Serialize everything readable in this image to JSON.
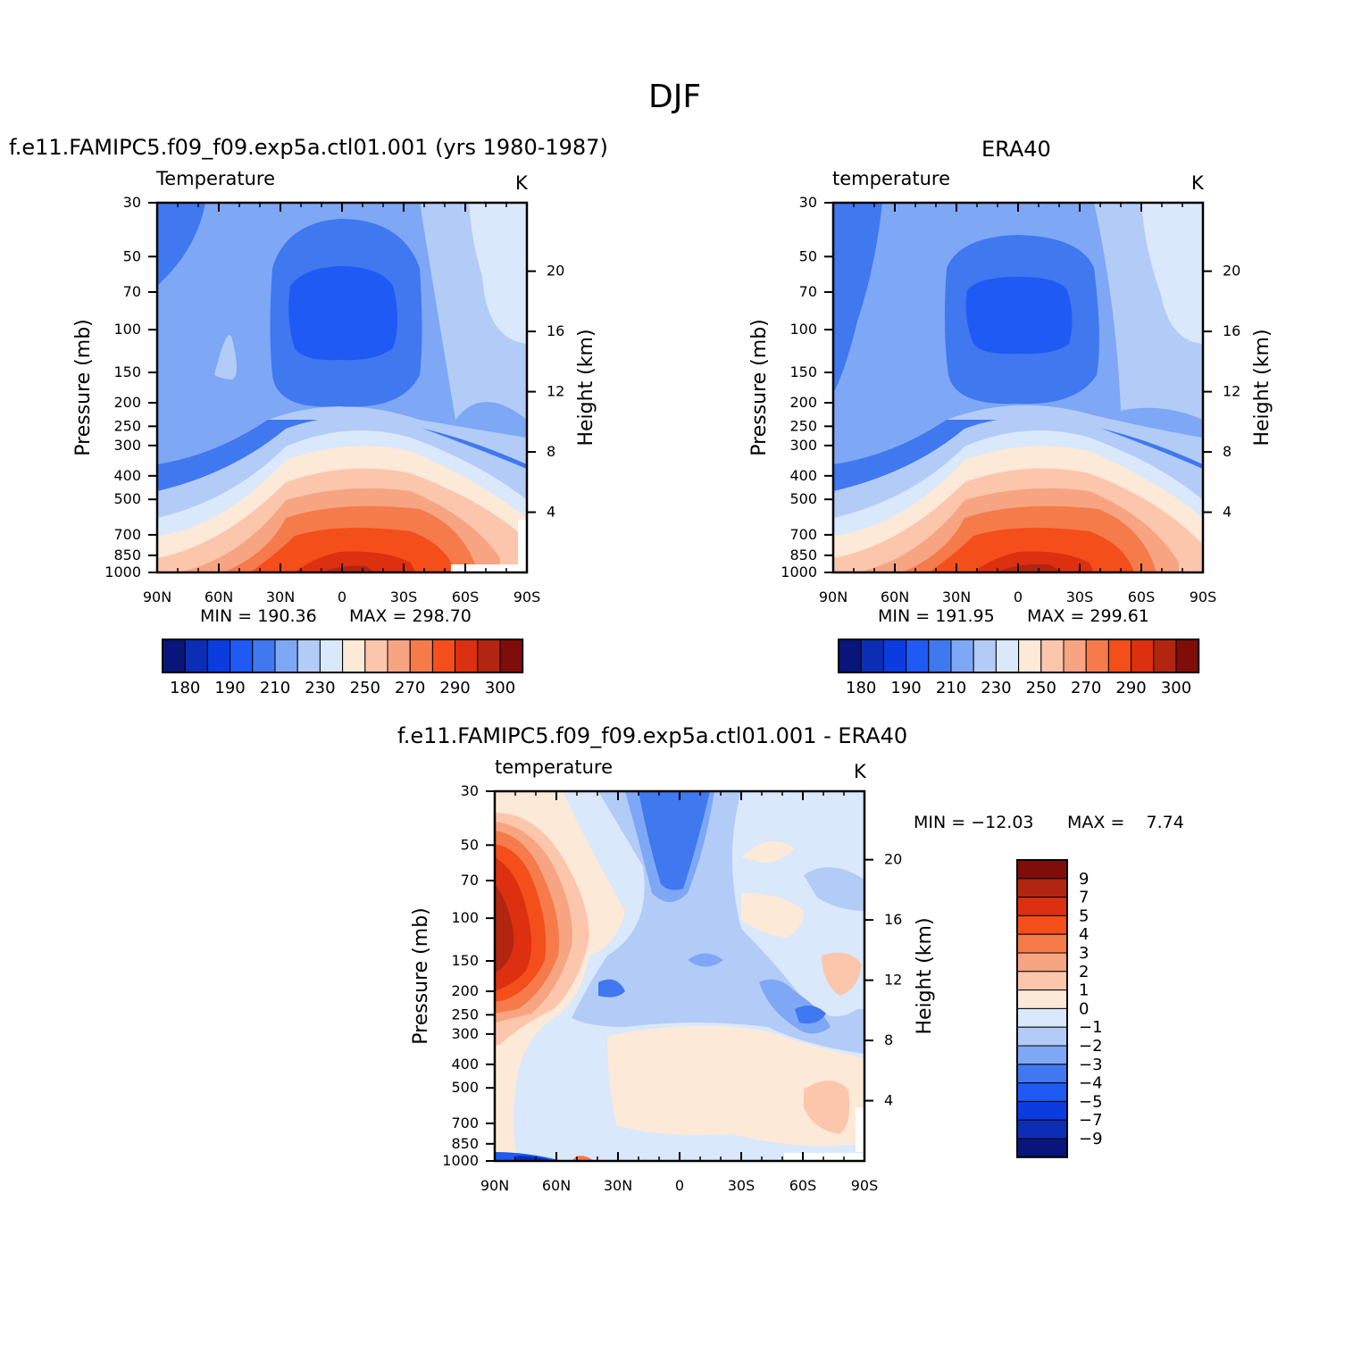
{
  "figure_title": "DJF",
  "colors": {
    "abs": [
      "#08157a",
      "#0b2eb5",
      "#0a3ce0",
      "#1f5af5",
      "#3f78ef",
      "#7ea7f5",
      "#b3cbf7",
      "#d9e8fb",
      "#fde9d8",
      "#fcc6ad",
      "#f7a482",
      "#f57b4a",
      "#f44e1a",
      "#dc3010",
      "#b22510",
      "#7f0d0a"
    ],
    "diff": [
      "#08157a",
      "#0b2eb5",
      "#0a3ce0",
      "#1f5af5",
      "#3f78ef",
      "#7ea7f5",
      "#b3cbf7",
      "#d9e8fb",
      "#fde9d8",
      "#fcc6ad",
      "#f7a482",
      "#f57b4a",
      "#f44e1a",
      "#dc3010",
      "#b22510",
      "#7f0d0a"
    ]
  },
  "chart_data": [
    {
      "type": "contour",
      "panel_title": "f.e11.FAMIPC5.f09_f09.exp5a.ctl01.001 (yrs 1980-1987)",
      "variable": "Temperature",
      "units": "K",
      "x_ticks": [
        "90N",
        "60N",
        "30N",
        "0",
        "30S",
        "60S",
        "90S"
      ],
      "x_values": [
        90,
        60,
        30,
        0,
        -30,
        -60,
        -90
      ],
      "y_ticks": [
        "30",
        "50",
        "70",
        "100",
        "150",
        "200",
        "250",
        "300",
        "400",
        "500",
        "700",
        "850",
        "1000"
      ],
      "y_values": [
        30,
        50,
        70,
        100,
        150,
        200,
        250,
        300,
        400,
        500,
        700,
        850,
        1000
      ],
      "y_label": "Pressure (mb)",
      "y2_ticks": [
        "20",
        "16",
        "12",
        "8",
        "4"
      ],
      "y2_values": [
        20,
        16,
        12,
        8,
        4
      ],
      "y2_label": "Height (km)",
      "min_text": "MIN = 190.36",
      "max_text": "MAX = 298.70",
      "min": 190.36,
      "max": 298.7,
      "colorbar_labels": [
        "180",
        "190",
        "210",
        "230",
        "250",
        "270",
        "290",
        "300"
      ]
    },
    {
      "type": "contour",
      "panel_title": "ERA40",
      "variable": "temperature",
      "units": "K",
      "x_ticks": [
        "90N",
        "60N",
        "30N",
        "0",
        "30S",
        "60S",
        "90S"
      ],
      "x_values": [
        90,
        60,
        30,
        0,
        -30,
        -60,
        -90
      ],
      "y_ticks": [
        "30",
        "50",
        "70",
        "100",
        "150",
        "200",
        "250",
        "300",
        "400",
        "500",
        "700",
        "850",
        "1000"
      ],
      "y_values": [
        30,
        50,
        70,
        100,
        150,
        200,
        250,
        300,
        400,
        500,
        700,
        850,
        1000
      ],
      "y_label": "Pressure (mb)",
      "y2_ticks": [
        "20",
        "16",
        "12",
        "8",
        "4"
      ],
      "y2_values": [
        20,
        16,
        12,
        8,
        4
      ],
      "y2_label": "Height (km)",
      "min_text": "MIN = 191.95",
      "max_text": "MAX = 299.61",
      "min": 191.95,
      "max": 299.61,
      "colorbar_labels": [
        "180",
        "190",
        "210",
        "230",
        "250",
        "270",
        "290",
        "300"
      ]
    },
    {
      "type": "contour",
      "panel_title": "f.e11.FAMIPC5.f09_f09.exp5a.ctl01.001 - ERA40",
      "variable": "temperature",
      "units": "K",
      "x_ticks": [
        "90N",
        "60N",
        "30N",
        "0",
        "30S",
        "60S",
        "90S"
      ],
      "x_values": [
        90,
        60,
        30,
        0,
        -30,
        -60,
        -90
      ],
      "y_ticks": [
        "30",
        "50",
        "70",
        "100",
        "150",
        "200",
        "250",
        "300",
        "400",
        "500",
        "700",
        "850",
        "1000"
      ],
      "y_values": [
        30,
        50,
        70,
        100,
        150,
        200,
        250,
        300,
        400,
        500,
        700,
        850,
        1000
      ],
      "y_label": "Pressure (mb)",
      "y2_ticks": [
        "20",
        "16",
        "12",
        "8",
        "4"
      ],
      "y2_values": [
        20,
        16,
        12,
        8,
        4
      ],
      "y2_label": "Height (km)",
      "min_text": "MIN = −12.03",
      "max_text": "MAX =    7.74",
      "min": -12.03,
      "max": 7.74,
      "colorbar_labels": [
        "9",
        "7",
        "5",
        "4",
        "3",
        "2",
        "1",
        "0",
        "−1",
        "−2",
        "−3",
        "−4",
        "−5",
        "−7",
        "−9"
      ]
    }
  ]
}
